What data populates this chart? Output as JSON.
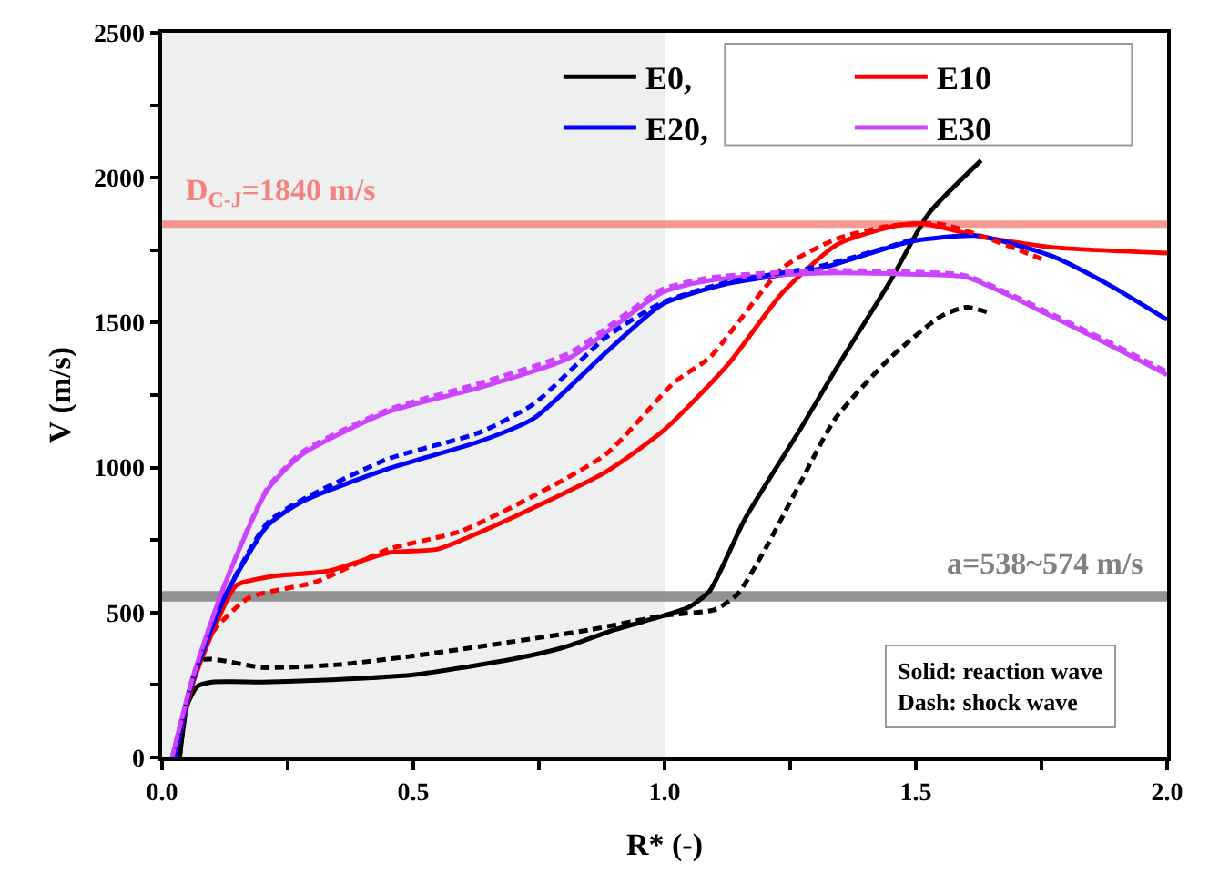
{
  "chart_data": {
    "type": "line",
    "xlabel": "R* (-)",
    "ylabel": "V (m/s)",
    "xlim": [
      0,
      2
    ],
    "ylim": [
      0,
      2500
    ],
    "xticks": [
      {
        "value": 0,
        "label": "0.0"
      },
      {
        "value": 0.25,
        "label": null
      },
      {
        "value": 0.5,
        "label": "0.5"
      },
      {
        "value": 0.75,
        "label": null
      },
      {
        "value": 1,
        "label": "1.0"
      },
      {
        "value": 1.25,
        "label": null
      },
      {
        "value": 1.5,
        "label": "1.5"
      },
      {
        "value": 1.75,
        "label": null
      },
      {
        "value": 2,
        "label": "2.0"
      }
    ],
    "yticks": [
      0,
      {
        "value": 250,
        "label": null
      },
      500,
      {
        "value": 750,
        "label": null
      },
      1000,
      {
        "value": 1250,
        "label": null
      },
      1500,
      {
        "value": 1750,
        "label": null
      },
      2000,
      {
        "value": 2250,
        "label": null
      },
      2500
    ],
    "grid": false,
    "legend": "top right",
    "marker": "none",
    "bands": [
      {
        "axis": "x",
        "from": 0,
        "to": 1,
        "color": "#eeefef"
      },
      {
        "axis": "y",
        "from": 538,
        "to": 574,
        "label": "a=538~574 m/s",
        "color": "#808080"
      }
    ],
    "ref_lines": [
      {
        "axis": "y",
        "value": 1840,
        "label": "D$_{C-J}$=1840 m/s",
        "color": "#f4817b"
      }
    ],
    "annotations": [
      "Solid: reaction wave\nDash: shock wave"
    ],
    "series": [
      {
        "name": "E0,",
        "color": "#000000",
        "line_style": "solid",
        "x": [
          0.035,
          0.05,
          0.07,
          0.1,
          0.2,
          0.3,
          0.5,
          0.7,
          0.8,
          0.9,
          1.0,
          1.05,
          1.09,
          1.16,
          1.27,
          1.34,
          1.45,
          1.525,
          1.63
        ],
        "values": [
          0,
          180,
          245,
          260,
          260,
          265,
          285,
          340,
          380,
          440,
          490,
          520,
          575,
          823,
          1132,
          1337,
          1646,
          1875,
          2060
        ]
      },
      {
        "name": "E10",
        "color": "#ff0000",
        "line_style": "solid",
        "x": [
          0.025,
          0.06,
          0.1,
          0.148,
          0.22,
          0.33,
          0.45,
          0.547,
          0.61,
          0.74,
          0.884,
          1.0,
          1.127,
          1.235,
          1.344,
          1.453,
          1.514,
          1.62,
          1.77,
          2.0
        ],
        "values": [
          0,
          250,
          430,
          594,
          625,
          643,
          706,
          718,
          760,
          862,
          986,
          1131,
          1357,
          1604,
          1770,
          1832,
          1842,
          1800,
          1760,
          1740
        ]
      },
      {
        "name": "E20,",
        "color": "#0000ff",
        "line_style": "solid",
        "x": [
          0.025,
          0.06,
          0.124,
          0.21,
          0.28,
          0.45,
          0.63,
          0.74,
          0.884,
          0.996,
          1.127,
          1.31,
          1.49,
          1.62,
          1.77,
          1.89,
          2.0
        ],
        "values": [
          0,
          260,
          551,
          800,
          884,
          996,
          1089,
          1170,
          1398,
          1564,
          1635,
          1687,
          1780,
          1800,
          1730,
          1625,
          1510
        ]
      },
      {
        "name": "E30",
        "color": "#cc44ff",
        "line_style": "solid",
        "x": [
          0.02,
          0.06,
          0.124,
          0.21,
          0.28,
          0.45,
          0.63,
          0.81,
          0.996,
          1.09,
          1.31,
          1.49,
          1.6,
          1.77,
          1.89,
          2.0
        ],
        "values": [
          0,
          270,
          594,
          924,
          1047,
          1192,
          1275,
          1378,
          1605,
          1646,
          1671,
          1667,
          1657,
          1522,
          1419,
          1320
        ]
      },
      {
        "color": "#000000",
        "line_style": "dashed",
        "x": [
          0.035,
          0.05,
          0.08,
          0.2,
          0.35,
          0.5,
          0.7,
          0.85,
          1.0,
          1.1,
          1.145,
          1.2,
          1.27,
          1.34,
          1.45,
          1.55,
          1.6,
          1.645
        ],
        "values": [
          0,
          200,
          336,
          310,
          320,
          350,
          400,
          440,
          490,
          510,
          563,
          718,
          947,
          1170,
          1380,
          1522,
          1553,
          1535
        ]
      },
      {
        "color": "#ff0000",
        "line_style": "dashed",
        "x": [
          0.025,
          0.06,
          0.1,
          0.173,
          0.305,
          0.45,
          0.594,
          0.74,
          0.884,
          1.02,
          1.09,
          1.235,
          1.344,
          1.453,
          1.55,
          1.645,
          1.75
        ],
        "values": [
          0,
          250,
          430,
          551,
          605,
          718,
          780,
          903,
          1047,
          1295,
          1380,
          1689,
          1790,
          1835,
          1840,
          1790,
          1720
        ]
      },
      {
        "color": "#0000ff",
        "line_style": "dashed",
        "x": [
          0.025,
          0.06,
          0.124,
          0.21,
          0.28,
          0.45,
          0.63,
          0.74,
          0.884,
          0.996,
          1.127,
          1.31,
          1.5
        ],
        "values": [
          0,
          260,
          551,
          810,
          890,
          1030,
          1120,
          1220,
          1450,
          1570,
          1640,
          1695,
          1790
        ]
      },
      {
        "color": "#cc44ff",
        "line_style": "dashed",
        "x": [
          0.02,
          0.06,
          0.124,
          0.21,
          0.28,
          0.45,
          0.63,
          0.81,
          0.996,
          1.09,
          1.31,
          1.49,
          1.6,
          1.77,
          1.89,
          2.0
        ],
        "values": [
          0,
          270,
          594,
          930,
          1055,
          1200,
          1290,
          1395,
          1615,
          1655,
          1680,
          1675,
          1662,
          1530,
          1428,
          1330
        ]
      }
    ]
  }
}
